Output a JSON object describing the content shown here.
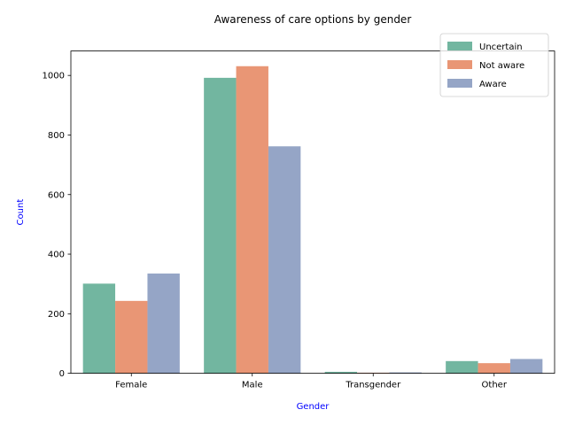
{
  "chart_data": {
    "type": "bar",
    "title": "Awareness of care options by gender",
    "xlabel": "Gender",
    "ylabel": "Count",
    "categories": [
      "Female",
      "Male",
      "Transgender",
      "Other"
    ],
    "series": [
      {
        "name": "Uncertain",
        "values": [
          301,
          992,
          5,
          41
        ],
        "color": "#72b6a0"
      },
      {
        "name": "Not aware",
        "values": [
          243,
          1031,
          2,
          34
        ],
        "color": "#e99675"
      },
      {
        "name": "Aware",
        "values": [
          335,
          762,
          3,
          48
        ],
        "color": "#95a5c6"
      }
    ],
    "ylim": [
      0,
      1082
    ],
    "yticks": [
      0,
      200,
      400,
      600,
      800,
      1000
    ],
    "grid": false,
    "legend_position": "top-right",
    "axis_label_color": "#0000ff"
  }
}
